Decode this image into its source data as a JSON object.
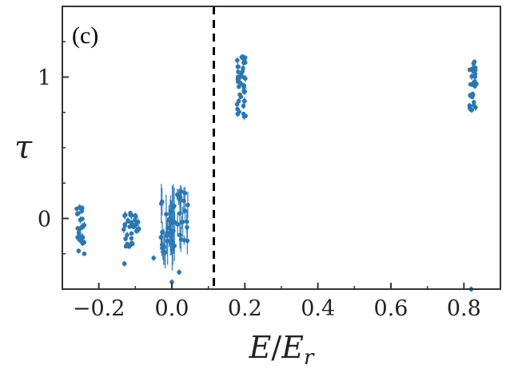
{
  "chart_data": {
    "type": "scatter",
    "panel_label": "(c)",
    "xlabel": "E/E_r",
    "xlabel_parts": {
      "main": "E",
      "slash": "/",
      "denom": "E",
      "sub": "r"
    },
    "ylabel": "τ",
    "xlim": [
      -0.3,
      0.9
    ],
    "ylim": [
      -0.5,
      1.5
    ],
    "x_ticks": [
      -0.2,
      0.0,
      0.2,
      0.4,
      0.6,
      0.8
    ],
    "x_tick_labels": [
      "−0.2",
      "0.0",
      "0.2",
      "0.4",
      "0.6",
      "0.8"
    ],
    "y_ticks": [
      0,
      1
    ],
    "y_tick_labels": [
      "0",
      "1"
    ],
    "threshold_line": {
      "x": 0.115,
      "style": "dashed"
    },
    "marker_color": "#2a78b4",
    "grid": false,
    "clusters": [
      {
        "x_center": -0.25,
        "x_spread": 0.012,
        "y_min": -0.25,
        "y_max": 0.1,
        "n": 26,
        "err": 0.02
      },
      {
        "x_center": -0.12,
        "x_spread": 0.012,
        "y_min": -0.2,
        "y_max": 0.05,
        "n": 24,
        "err": 0.02
      },
      {
        "x_center": -0.1,
        "x_spread": 0.01,
        "y_min": -0.12,
        "y_max": 0.03,
        "n": 12,
        "err": 0.02
      },
      {
        "x_center": -0.01,
        "x_spread": 0.02,
        "y_min": -0.25,
        "y_max": 0.12,
        "n": 30,
        "err": 0.12
      },
      {
        "x_center": 0.03,
        "x_spread": 0.015,
        "y_min": -0.2,
        "y_max": 0.2,
        "n": 20,
        "err": 0.08
      },
      {
        "x_center": 0.19,
        "x_spread": 0.012,
        "y_min": 0.72,
        "y_max": 1.16,
        "n": 40,
        "err": 0.02
      },
      {
        "x_center": 0.825,
        "x_spread": 0.01,
        "y_min": 0.72,
        "y_max": 1.12,
        "n": 30,
        "err": 0.02
      }
    ],
    "outliers": [
      {
        "x": -0.13,
        "y": -0.32
      },
      {
        "x": -0.05,
        "y": -0.28
      },
      {
        "x": 0.0,
        "y": -0.45
      },
      {
        "x": 0.02,
        "y": -0.38
      },
      {
        "x": 0.82,
        "y": -0.5
      }
    ]
  }
}
